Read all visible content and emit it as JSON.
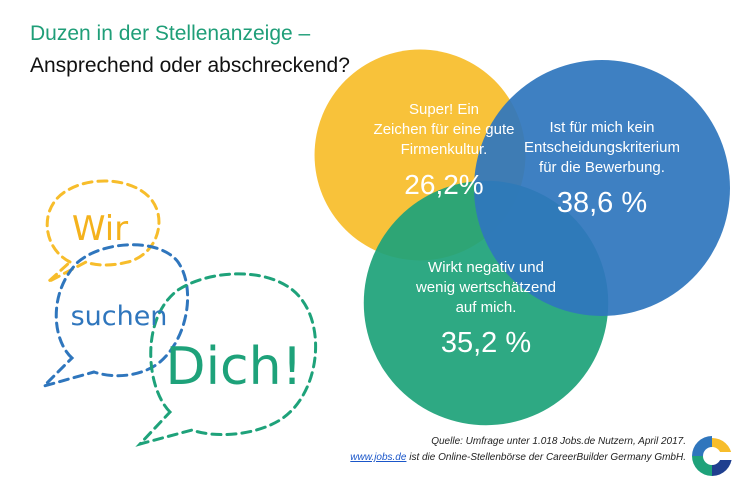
{
  "title": {
    "line1": "Duzen in der Stellenanzeige –",
    "line2": "Ansprechend oder abschreckend?"
  },
  "speech": {
    "word1": "Wir",
    "word2": "suchen",
    "word3": "Dich!"
  },
  "colors": {
    "yellow": "#f7bd2b",
    "blue": "#2f76bd",
    "green": "#1ea27a",
    "title_green": "#1f9e78"
  },
  "chart_data": {
    "type": "bubble",
    "unit": "%",
    "series": [
      {
        "label_lines": [
          "Super! Ein",
          "Zeichen für eine gute",
          "Firmenkultur."
        ],
        "value": 26.2,
        "value_label": "26,2%",
        "color": "#f7bd2b"
      },
      {
        "label_lines": [
          "Ist für mich kein",
          "Entscheidungskriterium",
          "für die Bewerbung."
        ],
        "value": 38.6,
        "value_label": "38,6 %",
        "color": "#2f76bd"
      },
      {
        "label_lines": [
          "Wirkt negativ und",
          "wenig wertschätzend",
          "auf mich."
        ],
        "value": 35.2,
        "value_label": "35,2 %",
        "color": "#1ea27a"
      }
    ]
  },
  "source": {
    "line1": "Quelle: Umfrage unter 1.018 Jobs.de Nutzern, April 2017.",
    "link": "www.jobs.de",
    "line2_rest": " ist die Online-Stellenbörse der CareerBuilder Germany GmbH."
  },
  "logo": {
    "icon": "careerbuilder-logo-icon"
  }
}
